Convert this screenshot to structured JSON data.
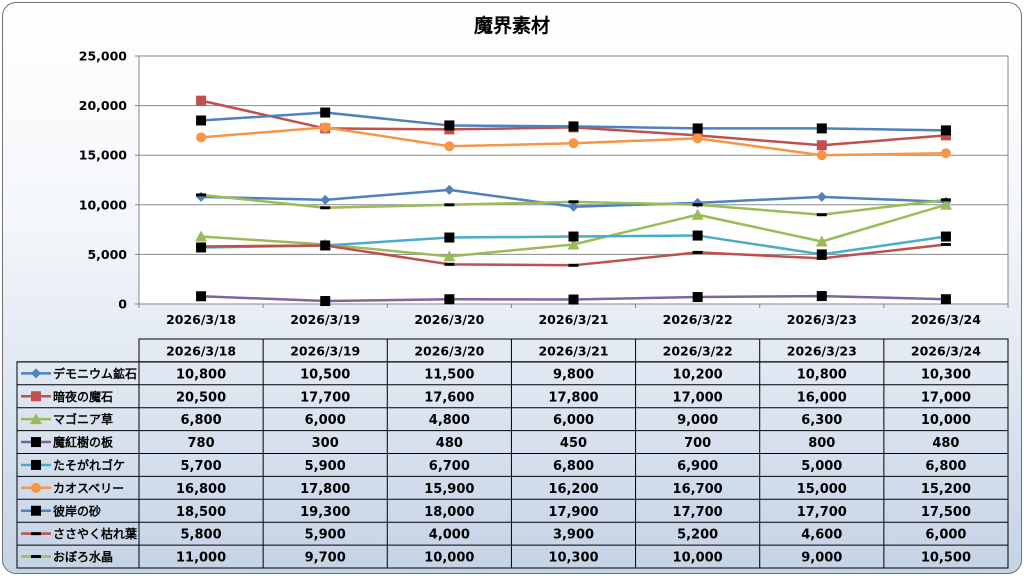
{
  "chart_data": {
    "type": "line",
    "title": "魔界素材",
    "categories": [
      "2026/3/18",
      "2026/3/19",
      "2026/3/20",
      "2026/3/21",
      "2026/3/22",
      "2026/3/23",
      "2026/3/24"
    ],
    "ylim": [
      0,
      25000
    ],
    "yticks": [
      "0",
      "5,000",
      "10,000",
      "15,000",
      "20,000",
      "25,000"
    ],
    "ytick_values": [
      0,
      5000,
      10000,
      15000,
      20000,
      25000
    ],
    "grid": true,
    "legend": "data-table",
    "series": [
      {
        "name": "デモニウム鉱石",
        "color": "#4f81bd",
        "marker": "diamond",
        "values": [
          10800,
          10500,
          11500,
          9800,
          10200,
          10800,
          10300
        ],
        "labels": [
          "10,800",
          "10,500",
          "11,500",
          "9,800",
          "10,200",
          "10,800",
          "10,300"
        ]
      },
      {
        "name": "暗夜の魔石",
        "color": "#c0504d",
        "marker": "square",
        "values": [
          20500,
          17700,
          17600,
          17800,
          17000,
          16000,
          17000
        ],
        "labels": [
          "20,500",
          "17,700",
          "17,600",
          "17,800",
          "17,000",
          "16,000",
          "17,000"
        ]
      },
      {
        "name": "マゴニア草",
        "color": "#9bbb59",
        "marker": "triangle",
        "values": [
          6800,
          6000,
          4800,
          6000,
          9000,
          6300,
          10000
        ],
        "labels": [
          "6,800",
          "6,000",
          "4,800",
          "6,000",
          "9,000",
          "6,300",
          "10,000"
        ]
      },
      {
        "name": "魔紅樹の板",
        "color": "#8064a2",
        "marker": "blacksquare",
        "values": [
          780,
          300,
          480,
          450,
          700,
          800,
          480
        ],
        "labels": [
          "780",
          "300",
          "480",
          "450",
          "700",
          "800",
          "480"
        ]
      },
      {
        "name": "たそがれゴケ",
        "color": "#4bacc6",
        "marker": "blacksquare",
        "values": [
          5700,
          5900,
          6700,
          6800,
          6900,
          5000,
          6800
        ],
        "labels": [
          "5,700",
          "5,900",
          "6,700",
          "6,800",
          "6,900",
          "5,000",
          "6,800"
        ]
      },
      {
        "name": "カオスベリー",
        "color": "#f79646",
        "marker": "circle",
        "values": [
          16800,
          17800,
          15900,
          16200,
          16700,
          15000,
          15200
        ],
        "labels": [
          "16,800",
          "17,800",
          "15,900",
          "16,200",
          "16,700",
          "15,000",
          "15,200"
        ]
      },
      {
        "name": "彼岸の砂",
        "color": "#4f81bd",
        "marker": "blacksquare",
        "values": [
          18500,
          19300,
          18000,
          17900,
          17700,
          17700,
          17500
        ],
        "labels": [
          "18,500",
          "19,300",
          "18,000",
          "17,900",
          "17,700",
          "17,700",
          "17,500"
        ]
      },
      {
        "name": "ささやく枯れ葉",
        "color": "#c0504d",
        "marker": "dash",
        "values": [
          5800,
          5900,
          4000,
          3900,
          5200,
          4600,
          6000
        ],
        "labels": [
          "5,800",
          "5,900",
          "4,000",
          "3,900",
          "5,200",
          "4,600",
          "6,000"
        ]
      },
      {
        "name": "おぼろ水晶",
        "color": "#9bbb59",
        "marker": "dash",
        "values": [
          11000,
          9700,
          10000,
          10300,
          10000,
          9000,
          10500
        ],
        "labels": [
          "11,000",
          "9,700",
          "10,000",
          "10,300",
          "10,000",
          "9,000",
          "10,500"
        ]
      }
    ]
  }
}
